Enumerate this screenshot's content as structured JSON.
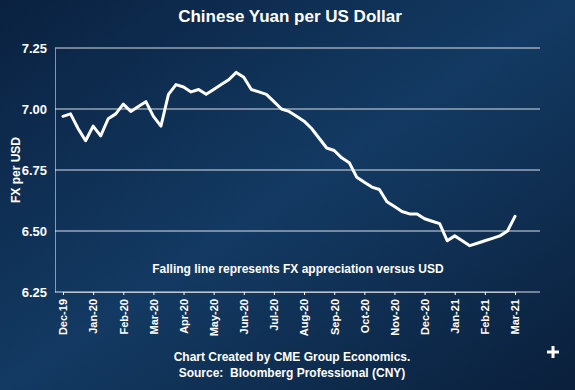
{
  "chart_data": {
    "type": "line",
    "title": "Chinese Yuan per US Dollar",
    "y_label": "FX per USD",
    "annotation": "Falling line represents FX appreciation versus USD",
    "credits": [
      "Chart Created by CME Group Economics.",
      "Source:  Bloomberg Professional (CNY)"
    ],
    "categories": [
      "Dec-19",
      null,
      null,
      null,
      "Jan-20",
      null,
      null,
      null,
      "Feb-20",
      null,
      null,
      null,
      "Mar-20",
      null,
      null,
      null,
      "Apr-20",
      null,
      null,
      null,
      "May-20",
      null,
      null,
      null,
      "Jun-20",
      null,
      null,
      null,
      "Jul-20",
      null,
      null,
      null,
      "Aug-20",
      null,
      null,
      null,
      "Sep-20",
      null,
      null,
      null,
      "Oct-20",
      null,
      null,
      null,
      "Nov-20",
      null,
      null,
      null,
      "Dec-20",
      null,
      null,
      null,
      "Jan-21",
      null,
      null,
      null,
      "Feb-21",
      null,
      null,
      null,
      "Mar-21"
    ],
    "values": [
      6.97,
      6.98,
      6.92,
      6.87,
      6.93,
      6.89,
      6.96,
      6.98,
      7.02,
      6.99,
      7.01,
      7.03,
      6.97,
      6.93,
      7.06,
      7.1,
      7.09,
      7.07,
      7.08,
      7.06,
      7.08,
      7.1,
      7.12,
      7.15,
      7.13,
      7.08,
      7.07,
      7.06,
      7.03,
      7.0,
      6.99,
      6.97,
      6.95,
      6.92,
      6.88,
      6.84,
      6.83,
      6.8,
      6.78,
      6.72,
      6.7,
      6.68,
      6.67,
      6.62,
      6.6,
      6.58,
      6.57,
      6.57,
      6.55,
      6.54,
      6.53,
      6.46,
      6.48,
      6.46,
      6.44,
      6.45,
      6.46,
      6.47,
      6.48,
      6.5,
      6.56
    ],
    "color": "#ffffff",
    "ylim": [
      6.25,
      7.25
    ],
    "yticks": [
      6.25,
      {
        "value": 6.5,
        "label": "6.50"
      },
      6.75,
      {
        "value": 7,
        "label": "7.00"
      },
      7.25
    ],
    "grid": true
  }
}
